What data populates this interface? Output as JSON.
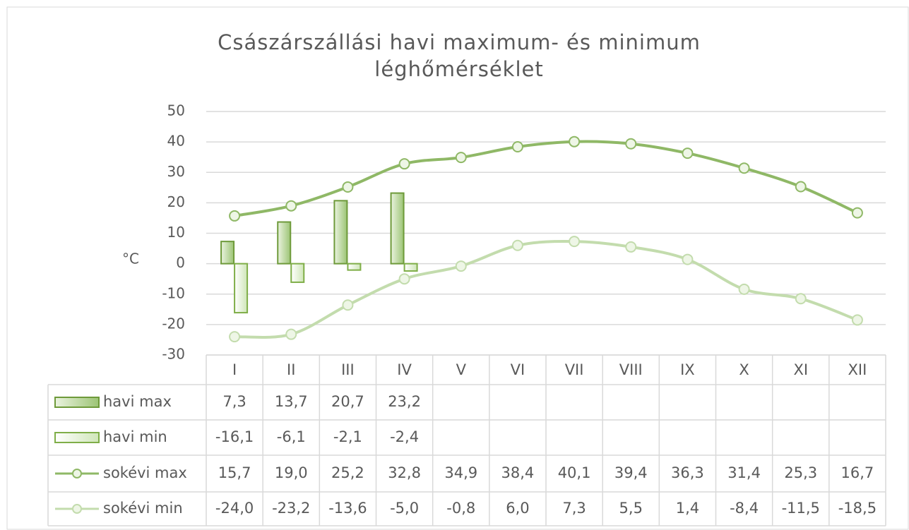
{
  "chart_data": {
    "type": "bar-line",
    "title": "Császárszállási havi maximum- és minimum",
    "subtitle": "léghőmérséklet",
    "y_label": "°C",
    "categories": [
      "I",
      "II",
      "III",
      "IV",
      "V",
      "VI",
      "VII",
      "VIII",
      "IX",
      "X",
      "XI",
      "XII"
    ],
    "ylim": [
      -30,
      50
    ],
    "yticks": [
      -30,
      -20,
      -10,
      0,
      10,
      20,
      30,
      40,
      50
    ],
    "grid": true,
    "data_table": true,
    "series": [
      {
        "name": "havi max",
        "type": "bar",
        "color": "#6e9a3a",
        "values": [
          7.3,
          13.7,
          20.7,
          23.2,
          null,
          null,
          null,
          null,
          null,
          null,
          null,
          null
        ],
        "value_labels": [
          "7,3",
          "13,7",
          "20,7",
          "23,2",
          null,
          null,
          null,
          null,
          null,
          null,
          null,
          null
        ]
      },
      {
        "name": "havi min",
        "type": "bar",
        "color": "#7fae48",
        "values": [
          -16.1,
          -6.1,
          -2.1,
          -2.4,
          null,
          null,
          null,
          null,
          null,
          null,
          null,
          null
        ],
        "value_labels": [
          "-16,1",
          "-6,1",
          "-2,1",
          "-2,4",
          null,
          null,
          null,
          null,
          null,
          null,
          null,
          null
        ]
      },
      {
        "name": "sokévi max",
        "type": "line",
        "color": "#8fb866",
        "values": [
          15.7,
          19.0,
          25.2,
          32.8,
          34.9,
          38.4,
          40.1,
          39.4,
          36.3,
          31.4,
          25.3,
          16.7
        ],
        "value_labels": [
          "15,7",
          "19,0",
          "25,2",
          "32,8",
          "34,9",
          "38,4",
          "40,1",
          "39,4",
          "36,3",
          "31,4",
          "25,3",
          "16,7"
        ]
      },
      {
        "name": "sokévi min",
        "type": "line",
        "color": "#c3dcad",
        "values": [
          -24.0,
          -23.2,
          -13.6,
          -5.0,
          -0.8,
          6.0,
          7.3,
          5.5,
          1.4,
          -8.4,
          -11.5,
          -18.5
        ],
        "value_labels": [
          "-24,0",
          "-23,2",
          "-13,6",
          "-5,0",
          "-0,8",
          "6,0",
          "7,3",
          "5,5",
          "1,4",
          "-8,4",
          "-11,5",
          "-18,5"
        ]
      }
    ]
  }
}
